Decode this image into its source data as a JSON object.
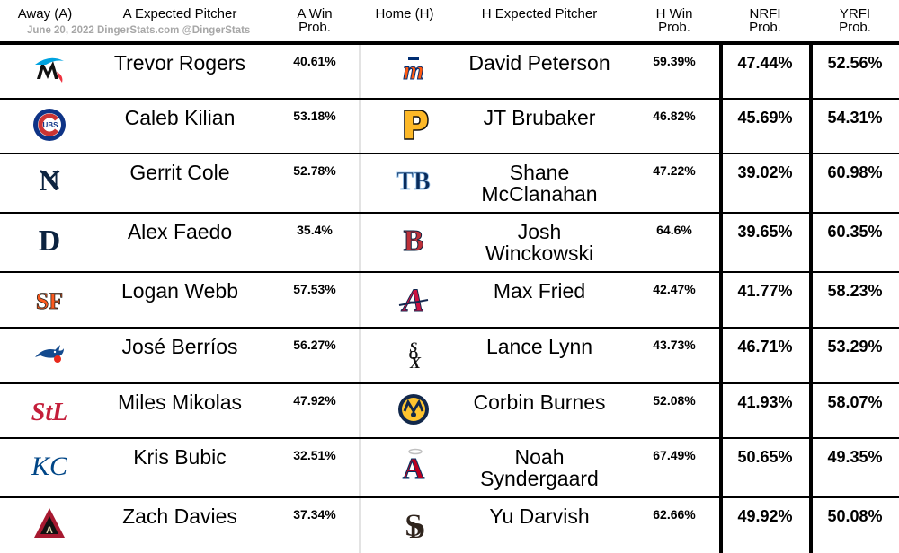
{
  "header": {
    "away": "Away (A)",
    "a_pitcher": "A Expected Pitcher",
    "a_win": [
      "A Win",
      "Prob."
    ],
    "home": "Home (H)",
    "h_pitcher": "H Expected Pitcher",
    "h_win": [
      "H Win",
      "Prob."
    ],
    "nrfi": [
      "NRFI",
      "Prob."
    ],
    "yrfi": [
      "YRFI",
      "Prob."
    ],
    "credit": "June 20, 2022 DingerStats.com @DingerStats"
  },
  "colors": {
    "rule": "#000000",
    "credit": "#a7a7a7",
    "divider": "#e3e3e3"
  },
  "games": [
    {
      "away_logo": "marlins-logo-icon",
      "away_pitcher": [
        "Trevor Rogers"
      ],
      "a_win": "40.61%",
      "home_logo": "mets-logo-icon",
      "home_pitcher": [
        "David Peterson"
      ],
      "h_win": "59.39%",
      "nrfi": "47.44%",
      "yrfi": "52.56%"
    },
    {
      "away_logo": "cubs-logo-icon",
      "away_pitcher": [
        "Caleb Kilian"
      ],
      "a_win": "53.18%",
      "home_logo": "pirates-logo-icon",
      "home_pitcher": [
        "JT Brubaker"
      ],
      "h_win": "46.82%",
      "nrfi": "45.69%",
      "yrfi": "54.31%"
    },
    {
      "away_logo": "yankees-logo-icon",
      "away_pitcher": [
        "Gerrit Cole"
      ],
      "a_win": "52.78%",
      "home_logo": "rays-logo-icon",
      "home_pitcher": [
        "Shane",
        "McClanahan"
      ],
      "h_win": "47.22%",
      "nrfi": "39.02%",
      "yrfi": "60.98%"
    },
    {
      "away_logo": "tigers-logo-icon",
      "away_pitcher": [
        "Alex Faedo"
      ],
      "a_win": "35.4%",
      "home_logo": "red-sox-logo-icon",
      "home_pitcher": [
        "Josh",
        "Winckowski"
      ],
      "h_win": "64.6%",
      "nrfi": "39.65%",
      "yrfi": "60.35%"
    },
    {
      "away_logo": "giants-logo-icon",
      "away_pitcher": [
        "Logan Webb"
      ],
      "a_win": "57.53%",
      "home_logo": "braves-logo-icon",
      "home_pitcher": [
        "Max Fried"
      ],
      "h_win": "42.47%",
      "nrfi": "41.77%",
      "yrfi": "58.23%"
    },
    {
      "away_logo": "blue-jays-logo-icon",
      "away_pitcher": [
        "José Berríos"
      ],
      "a_win": "56.27%",
      "home_logo": "white-sox-logo-icon",
      "home_pitcher": [
        "Lance Lynn"
      ],
      "h_win": "43.73%",
      "nrfi": "46.71%",
      "yrfi": "53.29%"
    },
    {
      "away_logo": "cardinals-logo-icon",
      "away_pitcher": [
        "Miles Mikolas"
      ],
      "a_win": "47.92%",
      "home_logo": "brewers-logo-icon",
      "home_pitcher": [
        "Corbin Burnes"
      ],
      "h_win": "52.08%",
      "nrfi": "41.93%",
      "yrfi": "58.07%"
    },
    {
      "away_logo": "royals-logo-icon",
      "away_pitcher": [
        "Kris Bubic"
      ],
      "a_win": "32.51%",
      "home_logo": "angels-logo-icon",
      "home_pitcher": [
        "Noah",
        "Syndergaard"
      ],
      "h_win": "67.49%",
      "nrfi": "50.65%",
      "yrfi": "49.35%"
    },
    {
      "away_logo": "diamondbacks-logo-icon",
      "away_pitcher": [
        "Zach Davies"
      ],
      "a_win": "37.34%",
      "home_logo": "padres-logo-icon",
      "home_pitcher": [
        "Yu Darvish"
      ],
      "h_win": "62.66%",
      "nrfi": "49.92%",
      "yrfi": "50.08%"
    }
  ]
}
